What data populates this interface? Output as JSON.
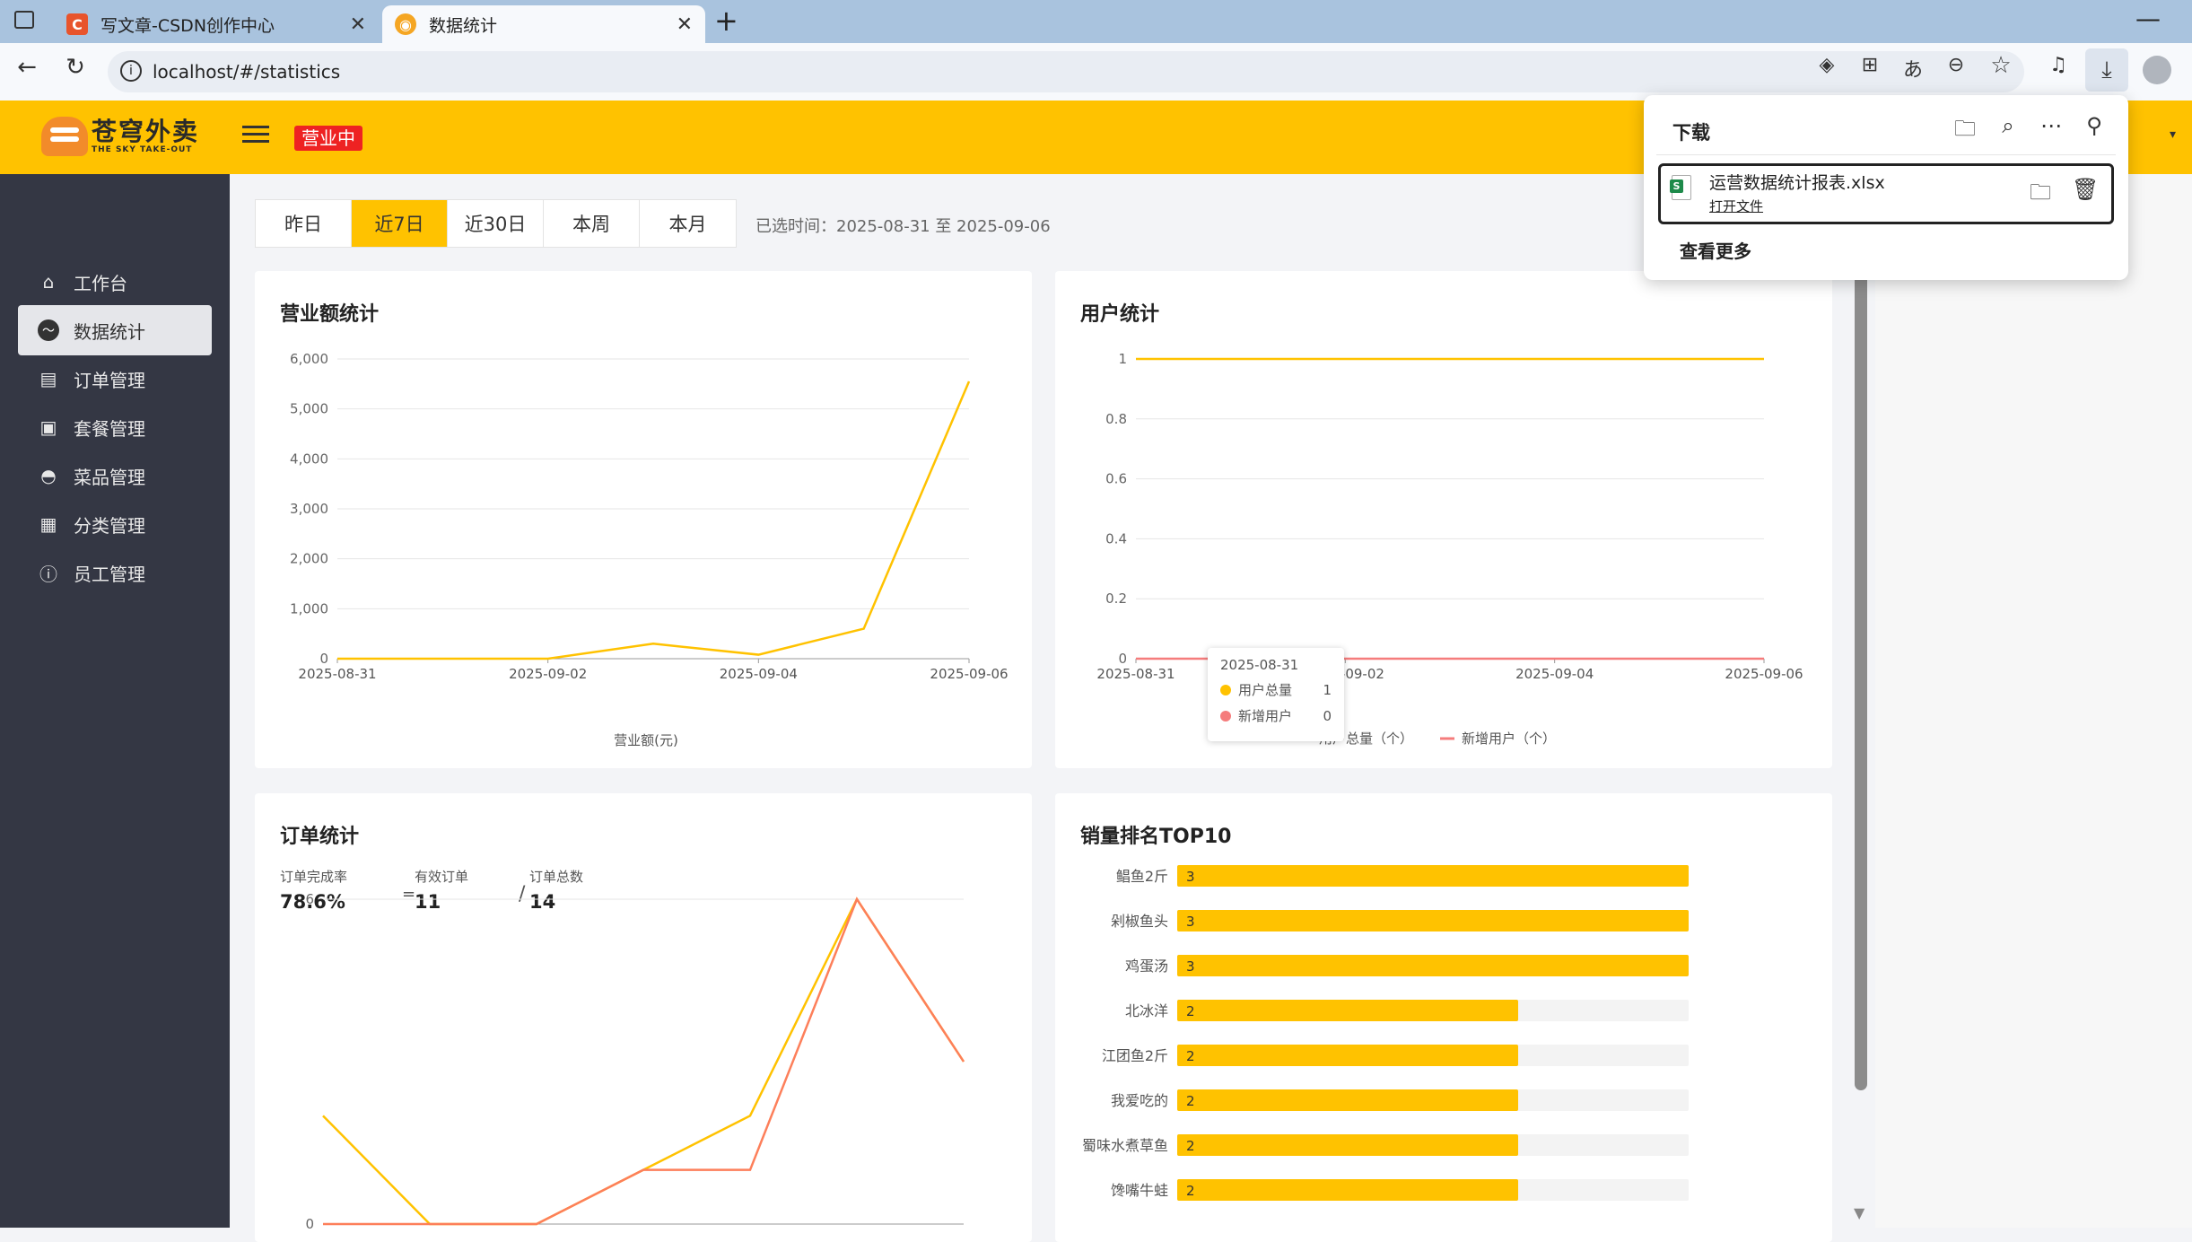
{
  "browser": {
    "tabs": [
      {
        "title": "写文章-CSDN创作中心",
        "icon": "csdn-icon",
        "active": false
      },
      {
        "title": "数据统计",
        "icon": "sky-takeout-icon",
        "active": true
      }
    ],
    "url": "localhost/#/statistics"
  },
  "header": {
    "brand_cn": "苍穹外卖",
    "brand_en": "THE SKY TAKE-OUT",
    "status": "营业中",
    "brand_color": "#ffc200"
  },
  "sidebar": {
    "items": [
      {
        "label": "工作台",
        "icon": "home-icon"
      },
      {
        "label": "数据统计",
        "icon": "chart-icon",
        "active": true
      },
      {
        "label": "订单管理",
        "icon": "clipboard-icon"
      },
      {
        "label": "套餐管理",
        "icon": "gift-icon"
      },
      {
        "label": "菜品管理",
        "icon": "dish-icon"
      },
      {
        "label": "分类管理",
        "icon": "grid-icon"
      },
      {
        "label": "员工管理",
        "icon": "info-icon"
      }
    ]
  },
  "range": {
    "tabs": [
      "昨日",
      "近7日",
      "近30日",
      "本周",
      "本月"
    ],
    "active": "近7日",
    "selected_text": "已选时间：2025-08-31 至 2025-09-06"
  },
  "turnover": {
    "title": "营业额统计",
    "legend": "营业额(元)"
  },
  "users": {
    "title": "用户统计",
    "legend_total": "用户总量（个）",
    "legend_new": "新增用户（个）",
    "tooltip": {
      "date": "2025-08-31",
      "total_label": "用户总量",
      "total_value": "1",
      "new_label": "新增用户",
      "new_value": "0"
    }
  },
  "orders": {
    "title": "订单统计",
    "completion_label": "订单完成率",
    "completion_value": "78.6%",
    "eq": "=",
    "valid_label": "有效订单",
    "valid_value": "11",
    "slash": "/",
    "total_label": "订单总数",
    "total_value": "14"
  },
  "top10": {
    "title": "销量排名TOP10"
  },
  "downloads": {
    "title": "下载",
    "file": "运营数据统计报表.xlsx",
    "open": "打开文件",
    "more": "查看更多"
  },
  "chart_data": [
    {
      "type": "line",
      "title": "营业额统计",
      "x": [
        "2025-08-31",
        "2025-09-01",
        "2025-09-02",
        "2025-09-03",
        "2025-09-04",
        "2025-09-05",
        "2025-09-06"
      ],
      "x_tick_labels": [
        "2025-08-31",
        "2025-09-02",
        "2025-09-04",
        "2025-09-06"
      ],
      "series": [
        {
          "name": "营业额(元)",
          "values": [
            0,
            0,
            0,
            300,
            80,
            600,
            5550
          ],
          "color": "#ffc200"
        }
      ],
      "ylim": [
        0,
        6000
      ],
      "yticks": [
        0,
        1000,
        2000,
        3000,
        4000,
        5000,
        6000
      ],
      "ytick_labels": [
        "0",
        "1,000",
        "2,000",
        "3,000",
        "4,000",
        "5,000",
        "6,000"
      ],
      "grid": true,
      "legend": "bottom"
    },
    {
      "type": "line",
      "title": "用户统计",
      "x": [
        "2025-08-31",
        "2025-09-01",
        "2025-09-02",
        "2025-09-03",
        "2025-09-04",
        "2025-09-05",
        "2025-09-06"
      ],
      "x_tick_labels": [
        "2025-08-31",
        "2025-09-02",
        "2025-09-04",
        "2025-09-06"
      ],
      "series": [
        {
          "name": "用户总量（个）",
          "values": [
            1,
            1,
            1,
            1,
            1,
            1,
            1
          ],
          "color": "#ffc200"
        },
        {
          "name": "新增用户（个）",
          "values": [
            0,
            0,
            0,
            0,
            0,
            0,
            0
          ],
          "color": "#f57c7c"
        }
      ],
      "ylim": [
        0,
        1
      ],
      "yticks": [
        0,
        0.2,
        0.4,
        0.6,
        0.8,
        1
      ],
      "ytick_labels": [
        "0",
        "0.2",
        "0.4",
        "0.6",
        "0.8",
        "1"
      ],
      "grid": true,
      "legend": "bottom"
    },
    {
      "type": "line",
      "title": "订单统计",
      "x": [
        "2025-08-31",
        "2025-09-01",
        "2025-09-02",
        "2025-09-03",
        "2025-09-04",
        "2025-09-05",
        "2025-09-06"
      ],
      "series": [
        {
          "values": [
            2,
            0,
            0,
            1,
            2,
            6,
            3
          ],
          "color": "#ffc200"
        },
        {
          "values": [
            0,
            0,
            0,
            1,
            1,
            6,
            3
          ],
          "color": "#fd7f5a"
        }
      ],
      "ylim": [
        0,
        6
      ],
      "yticks": [
        0,
        6
      ],
      "ytick_labels": [
        "0",
        "6"
      ],
      "grid": true
    },
    {
      "type": "bar",
      "title": "销量排名TOP10",
      "orientation": "horizontal",
      "categories": [
        "鲳鱼2斤",
        "剁椒鱼头",
        "鸡蛋汤",
        "北冰洋",
        "江团鱼2斤",
        "我爱吃的",
        "蜀味水煮草鱼",
        "馋嘴牛蛙"
      ],
      "values": [
        3,
        3,
        3,
        2,
        2,
        2,
        2,
        2
      ],
      "xlim": [
        0,
        3
      ],
      "color": "#ffc200"
    }
  ]
}
